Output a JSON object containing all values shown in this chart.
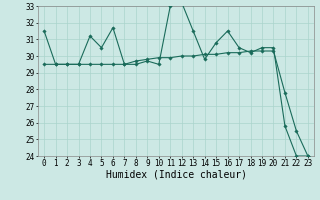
{
  "line1_x": [
    0,
    1,
    2,
    3,
    4,
    5,
    6,
    7,
    8,
    9,
    10,
    11,
    12,
    13,
    14,
    15,
    16,
    17,
    18,
    19,
    20,
    21,
    22,
    23
  ],
  "line1_y": [
    31.5,
    29.5,
    29.5,
    29.5,
    31.2,
    30.5,
    31.7,
    29.5,
    29.5,
    29.7,
    29.5,
    33.0,
    33.2,
    31.5,
    29.8,
    30.8,
    31.5,
    30.5,
    30.2,
    30.5,
    30.5,
    25.8,
    24.0,
    24.0
  ],
  "line2_x": [
    0,
    1,
    2,
    3,
    4,
    5,
    6,
    7,
    8,
    9,
    10,
    11,
    12,
    13,
    14,
    15,
    16,
    17,
    18,
    19,
    20,
    21,
    22,
    23
  ],
  "line2_y": [
    29.5,
    29.5,
    29.5,
    29.5,
    29.5,
    29.5,
    29.5,
    29.5,
    29.7,
    29.8,
    29.9,
    29.9,
    30.0,
    30.0,
    30.1,
    30.1,
    30.2,
    30.2,
    30.3,
    30.3,
    30.3,
    27.8,
    25.5,
    24.0
  ],
  "line_color": "#1a6b5a",
  "bg_color": "#cce8e4",
  "grid_color": "#aad4cc",
  "xlabel": "Humidex (Indice chaleur)",
  "ylim": [
    24,
    33
  ],
  "xlim": [
    -0.5,
    23.5
  ],
  "yticks": [
    24,
    25,
    26,
    27,
    28,
    29,
    30,
    31,
    32,
    33
  ],
  "xticks": [
    0,
    1,
    2,
    3,
    4,
    5,
    6,
    7,
    8,
    9,
    10,
    11,
    12,
    13,
    14,
    15,
    16,
    17,
    18,
    19,
    20,
    21,
    22,
    23
  ],
  "marker": "D",
  "markersize": 1.8,
  "linewidth": 0.8,
  "xlabel_fontsize": 7,
  "tick_fontsize": 5.5
}
